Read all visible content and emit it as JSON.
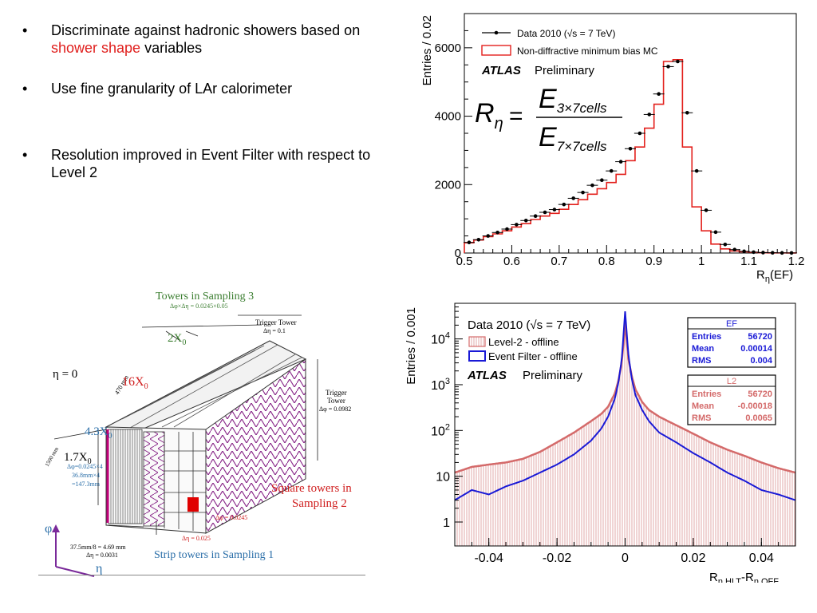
{
  "bullets": [
    {
      "pre": "Discriminate against hadronic showers based on ",
      "highlight": "shower shape",
      "post": " variables"
    },
    {
      "pre": "Use fine granularity of LAr calorimeter",
      "highlight": "",
      "post": ""
    },
    {
      "pre": "Resolution improved in Event Filter with respect to Level 2",
      "highlight": "",
      "post": ""
    }
  ],
  "bullet_symbol": "•",
  "colors": {
    "highlight": "#e0201e",
    "mc": "#e3201c",
    "l2": "#d46a6a",
    "ef": "#1a1ad6",
    "diagram_purple": "#8a2a8a",
    "diagram_red": "#e00000"
  },
  "diagram": {
    "eta0": "η = 0",
    "towers_s3": "Towers in Sampling 3",
    "towers_s3_sub": "Δφ×Δη = 0.0245×0.05",
    "trigger_tower_top": "Trigger Tower",
    "trigger_tower_top_sub": "Δη = 0.1",
    "x0_2": "2X",
    "x0_2_sub": "0",
    "len_470": "470 mm",
    "x0_16": "16X",
    "x0_16_sub": "0",
    "trigger_tower_side_1": "Trigger",
    "trigger_tower_side_2": "Tower",
    "trigger_tower_side_sub": "Δφ = 0.0982",
    "x0_43": "4.3X",
    "x0_43_sub": "0",
    "x0_17": "1.7X",
    "x0_17_sub": "0",
    "len_1500": "1500 mm",
    "dphi_s1_1": "Δφ=0.0245×4",
    "dphi_s1_2": "36.8mm×4",
    "dphi_s1_3": "=147.3mm",
    "square_towers_1": "Square towers in",
    "square_towers_2": "Sampling 2",
    "dphi_s2": "Δφ = 0.0245",
    "deta_s2": "Δη = 0.025",
    "strip_1": "37.5mm/8 = 4.69 mm",
    "strip_2": "Δη = 0.0031",
    "strip_towers": "Strip towers in Sampling 1",
    "axis_phi": "φ",
    "axis_eta": "η"
  },
  "chart_data": [
    {
      "type": "bar",
      "ylabel": "Entries / 0.02",
      "xlabel": "R",
      "xlabel_sub": "η",
      "xlabel_post": "(EF)",
      "xlim": [
        0.5,
        1.2
      ],
      "ylim": [
        0,
        7000
      ],
      "xticks": [
        "0.5",
        "0.6",
        "0.7",
        "0.8",
        "0.9",
        "1",
        "1.1",
        "1.2"
      ],
      "yticks": [
        "0",
        "2000",
        "4000",
        "6000"
      ],
      "legend": [
        "Data 2010 (√s = 7 TeV)",
        "Non-diffractive minimum bias MC"
      ],
      "atlas": "ATLAS",
      "preliminary": "Preliminary",
      "formula": {
        "r": "R",
        "r_sub": "η",
        "eq": "=",
        "num": "E",
        "num_sub": "3×7cells",
        "den": "E",
        "den_sub": "7×7cells"
      },
      "bin_edges": [
        0.5,
        0.52,
        0.54,
        0.56,
        0.58,
        0.6,
        0.62,
        0.64,
        0.66,
        0.68,
        0.7,
        0.72,
        0.74,
        0.76,
        0.78,
        0.8,
        0.82,
        0.84,
        0.86,
        0.88,
        0.9,
        0.92,
        0.94,
        0.96,
        0.98,
        1.0,
        1.02,
        1.04,
        1.06,
        1.08,
        1.1,
        1.12,
        1.14,
        1.16,
        1.18,
        1.2
      ],
      "series": [
        {
          "name": "Non-diffractive minimum bias MC",
          "style": "hist",
          "values": [
            300,
            380,
            480,
            560,
            650,
            760,
            860,
            980,
            1080,
            1160,
            1280,
            1420,
            1560,
            1720,
            1880,
            2060,
            2300,
            2700,
            3100,
            3650,
            4350,
            5600,
            5650,
            3100,
            1350,
            650,
            260,
            120,
            60,
            35,
            20,
            10,
            5,
            3,
            2
          ]
        },
        {
          "name": "Data 2010 (√s = 7 TeV)",
          "style": "points",
          "x": [
            0.51,
            0.53,
            0.55,
            0.57,
            0.59,
            0.61,
            0.63,
            0.65,
            0.67,
            0.69,
            0.71,
            0.73,
            0.75,
            0.77,
            0.79,
            0.81,
            0.83,
            0.85,
            0.87,
            0.89,
            0.91,
            0.93,
            0.95,
            0.97,
            0.99,
            1.01,
            1.03,
            1.05,
            1.07,
            1.09,
            1.11,
            1.13,
            1.15,
            1.17,
            1.19
          ],
          "values": [
            310,
            390,
            500,
            600,
            700,
            830,
            950,
            1080,
            1190,
            1270,
            1420,
            1600,
            1770,
            1980,
            2130,
            2400,
            2670,
            3050,
            3500,
            4050,
            4650,
            5450,
            5600,
            4100,
            2400,
            1250,
            610,
            250,
            100,
            50,
            25,
            12,
            7,
            4,
            2
          ]
        }
      ]
    },
    {
      "type": "bar",
      "ylabel": "Entries / 0.001",
      "xlabel_main": "R",
      "xlabel_sub1": "η,HLT",
      "xlabel_dash": "-R",
      "xlabel_sub2": "η,OFF",
      "xlim": [
        -0.05,
        0.05
      ],
      "ylim": [
        0.3,
        60000
      ],
      "yscale": "log",
      "xticks": [
        "-0.04",
        "-0.02",
        "0",
        "0.02",
        "0.04"
      ],
      "xtick_values": [
        -0.04,
        -0.02,
        0,
        0.02,
        0.04
      ],
      "yticks": [
        "1",
        "10",
        "10",
        "10",
        "10"
      ],
      "ytick_exps": [
        "",
        "",
        "2",
        "3",
        "4"
      ],
      "ytick_values": [
        1,
        10,
        100,
        1000,
        10000
      ],
      "title": "Data 2010 (√s = 7 TeV)",
      "legend": [
        "Level-2 - offline",
        "Event Filter - offline"
      ],
      "atlas": "ATLAS",
      "preliminary": "Preliminary",
      "stats": [
        {
          "title": "EF",
          "rows": [
            [
              "Entries",
              "56720"
            ],
            [
              "Mean",
              "0.00014"
            ],
            [
              "RMS",
              "0.004"
            ]
          ]
        },
        {
          "title": "L2",
          "rows": [
            [
              "Entries",
              "56720"
            ],
            [
              "Mean",
              "-0.00018"
            ],
            [
              "RMS",
              "0.0065"
            ]
          ]
        }
      ],
      "x": [
        -0.05,
        -0.045,
        -0.04,
        -0.035,
        -0.03,
        -0.025,
        -0.02,
        -0.015,
        -0.01,
        -0.007,
        -0.005,
        -0.003,
        -0.002,
        -0.001,
        0.0,
        0.001,
        0.002,
        0.003,
        0.005,
        0.007,
        0.01,
        0.015,
        0.02,
        0.025,
        0.03,
        0.035,
        0.04,
        0.045,
        0.05
      ],
      "series": [
        {
          "name": "Level-2 - offline",
          "values": [
            12,
            16,
            18,
            20,
            24,
            34,
            55,
            90,
            160,
            230,
            330,
            650,
            1200,
            3000,
            22000,
            3500,
            1500,
            800,
            420,
            280,
            200,
            130,
            85,
            55,
            38,
            28,
            20,
            15,
            12
          ]
        },
        {
          "name": "Event Filter - offline",
          "values": [
            3,
            5,
            4,
            6,
            8,
            12,
            18,
            30,
            60,
            110,
            200,
            500,
            1100,
            3500,
            40000,
            4200,
            1300,
            600,
            280,
            160,
            90,
            55,
            32,
            20,
            12,
            8,
            5,
            4,
            3
          ]
        }
      ]
    }
  ]
}
